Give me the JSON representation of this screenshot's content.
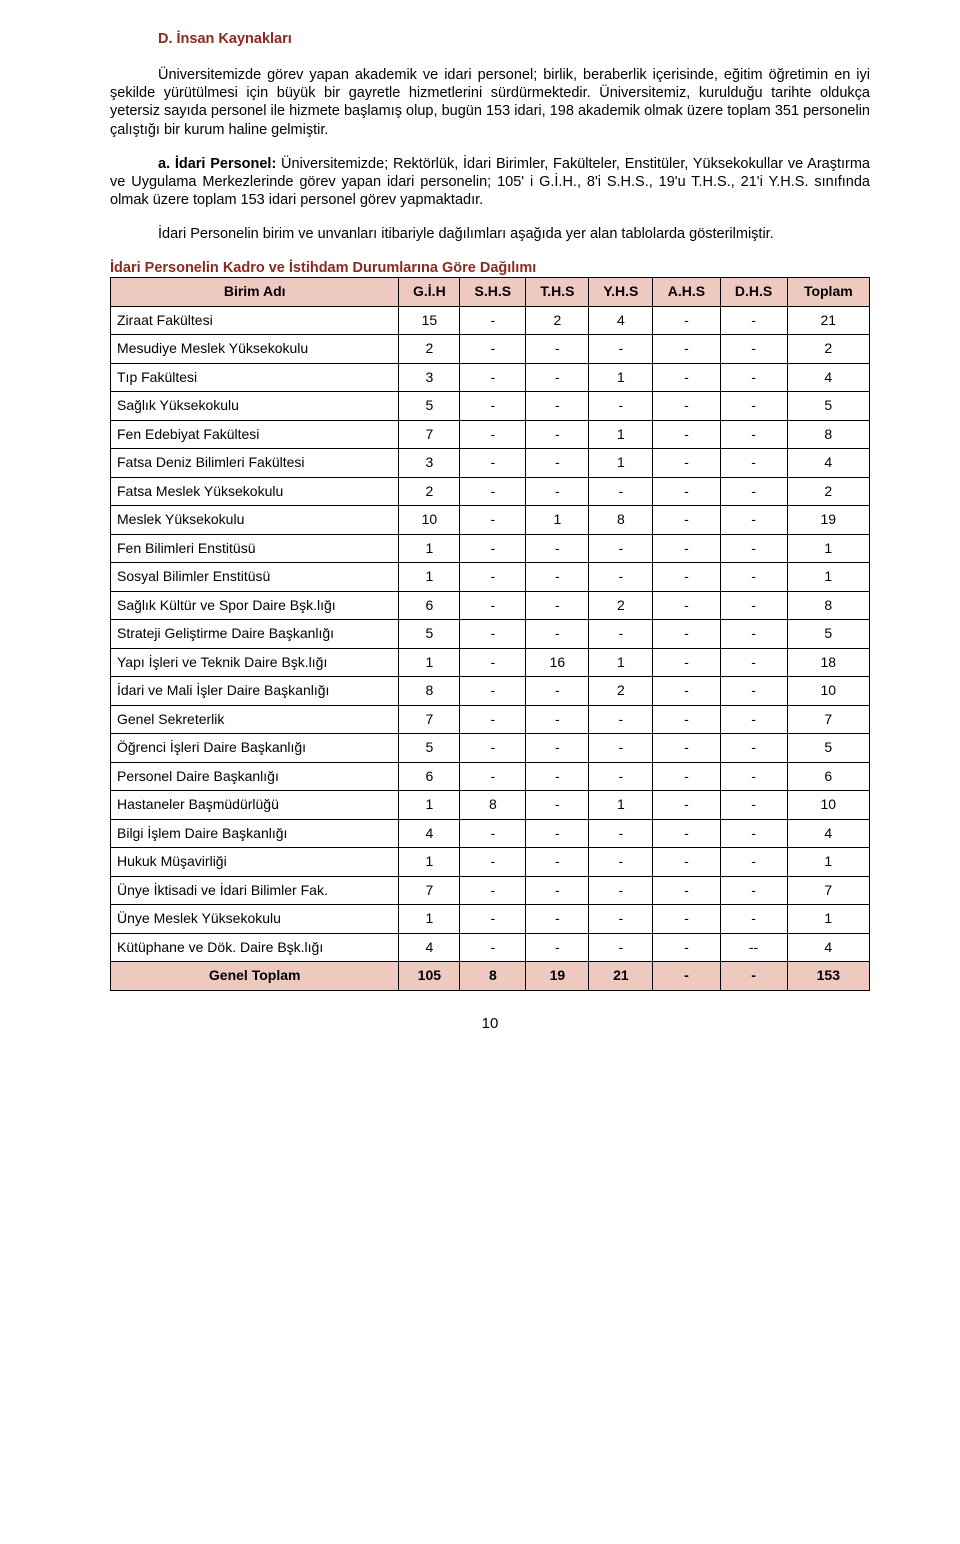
{
  "heading": "D. İnsan Kaynakları",
  "paragraphs": {
    "p1": "Üniversitemizde görev yapan akademik ve idari personel; birlik, beraberlik içerisinde, eğitim öğretimin en iyi şekilde yürütülmesi için büyük bir gayretle hizmetlerini sürdürmektedir. Üniversitemiz, kurulduğu tarihte oldukça yetersiz sayıda personel ile hizmete başlamış olup, bugün 153 idari, 198 akademik olmak üzere toplam 351 personelin çalıştığı bir kurum haline gelmiştir.",
    "p2_label": "a. İdari Personel:",
    "p2_text": " Üniversitemizde; Rektörlük, İdari Birimler, Fakülteler, Enstitüler, Yüksekokullar ve Araştırma ve Uygulama Merkezlerinde görev yapan idari personelin; 105' i G.İ.H., 8'i S.H.S., 19'u T.H.S., 21'i Y.H.S. sınıfında olmak üzere toplam 153 idari personel görev yapmaktadır.",
    "p3": "İdari Personelin birim ve unvanları itibariyle dağılımları aşağıda yer alan tablolarda gösterilmiştir."
  },
  "table": {
    "title": "İdari Personelin Kadro ve İstihdam Durumlarına Göre Dağılımı",
    "columns": [
      "Birim Adı",
      "G.İ.H",
      "S.H.S",
      "T.H.S",
      "Y.H.S",
      "A.H.S",
      "D.H.S",
      "Toplam"
    ],
    "rows": [
      [
        "Ziraat Fakültesi",
        "15",
        "-",
        "2",
        "4",
        "-",
        "-",
        "21"
      ],
      [
        "Mesudiye Meslek Yüksekokulu",
        "2",
        "-",
        "-",
        "-",
        "-",
        "-",
        "2"
      ],
      [
        "Tıp Fakültesi",
        "3",
        "-",
        "-",
        "1",
        "-",
        "-",
        "4"
      ],
      [
        "Sağlık Yüksekokulu",
        "5",
        "-",
        "-",
        "-",
        "-",
        "-",
        "5"
      ],
      [
        "Fen Edebiyat Fakültesi",
        "7",
        "-",
        "-",
        "1",
        "-",
        "-",
        "8"
      ],
      [
        "Fatsa Deniz Bilimleri Fakültesi",
        "3",
        "-",
        "-",
        "1",
        "-",
        "-",
        "4"
      ],
      [
        "Fatsa Meslek Yüksekokulu",
        "2",
        "-",
        "-",
        "-",
        "-",
        "-",
        "2"
      ],
      [
        "Meslek Yüksekokulu",
        "10",
        "-",
        "1",
        "8",
        "-",
        "-",
        "19"
      ],
      [
        "Fen Bilimleri Enstitüsü",
        "1",
        "-",
        "-",
        "-",
        "-",
        "-",
        "1"
      ],
      [
        "Sosyal Bilimler Enstitüsü",
        "1",
        "-",
        "-",
        "-",
        "-",
        "-",
        "1"
      ],
      [
        "Sağlık Kültür ve Spor Daire Bşk.lığı",
        "6",
        "-",
        "-",
        "2",
        "-",
        "-",
        "8"
      ],
      [
        "Strateji Geliştirme Daire Başkanlığı",
        "5",
        "-",
        "-",
        "-",
        "-",
        "-",
        "5"
      ],
      [
        "Yapı İşleri ve Teknik Daire Bşk.lığı",
        "1",
        "-",
        "16",
        "1",
        "-",
        "-",
        "18"
      ],
      [
        "İdari ve Mali İşler Daire Başkanlığı",
        "8",
        "-",
        "-",
        "2",
        "-",
        "-",
        "10"
      ],
      [
        "Genel Sekreterlik",
        "7",
        "-",
        "-",
        "-",
        "-",
        "-",
        "7"
      ],
      [
        "Öğrenci İşleri Daire Başkanlığı",
        "5",
        "-",
        "-",
        "-",
        "-",
        "-",
        "5"
      ],
      [
        "Personel Daire Başkanlığı",
        "6",
        "-",
        "-",
        "-",
        "-",
        "-",
        "6"
      ],
      [
        "Hastaneler Başmüdürlüğü",
        "1",
        "8",
        "-",
        "1",
        "-",
        "-",
        "10"
      ],
      [
        "Bilgi İşlem Daire Başkanlığı",
        "4",
        "-",
        "-",
        "-",
        "-",
        "-",
        "4"
      ],
      [
        "Hukuk Müşavirliği",
        "1",
        "-",
        "-",
        "-",
        "-",
        "-",
        "1"
      ],
      [
        "Ünye İktisadi ve İdari Bilimler Fak.",
        "7",
        "-",
        "-",
        "-",
        "-",
        "-",
        "7"
      ],
      [
        "Ünye Meslek Yüksekokulu",
        "1",
        "-",
        "-",
        "-",
        "-",
        "-",
        "1"
      ],
      [
        "Kütüphane ve Dök. Daire Bşk.lığı",
        "4",
        "-",
        "-",
        "-",
        "-",
        "--",
        "4"
      ]
    ],
    "total": [
      "Genel Toplam",
      "105",
      "8",
      "19",
      "21",
      "-",
      "-",
      "153"
    ]
  },
  "colors": {
    "heading": "#8b2a1e",
    "table_header_bg": "#edc9c0",
    "text": "#000000",
    "border": "#000000",
    "background": "#ffffff"
  },
  "page_number": "10"
}
